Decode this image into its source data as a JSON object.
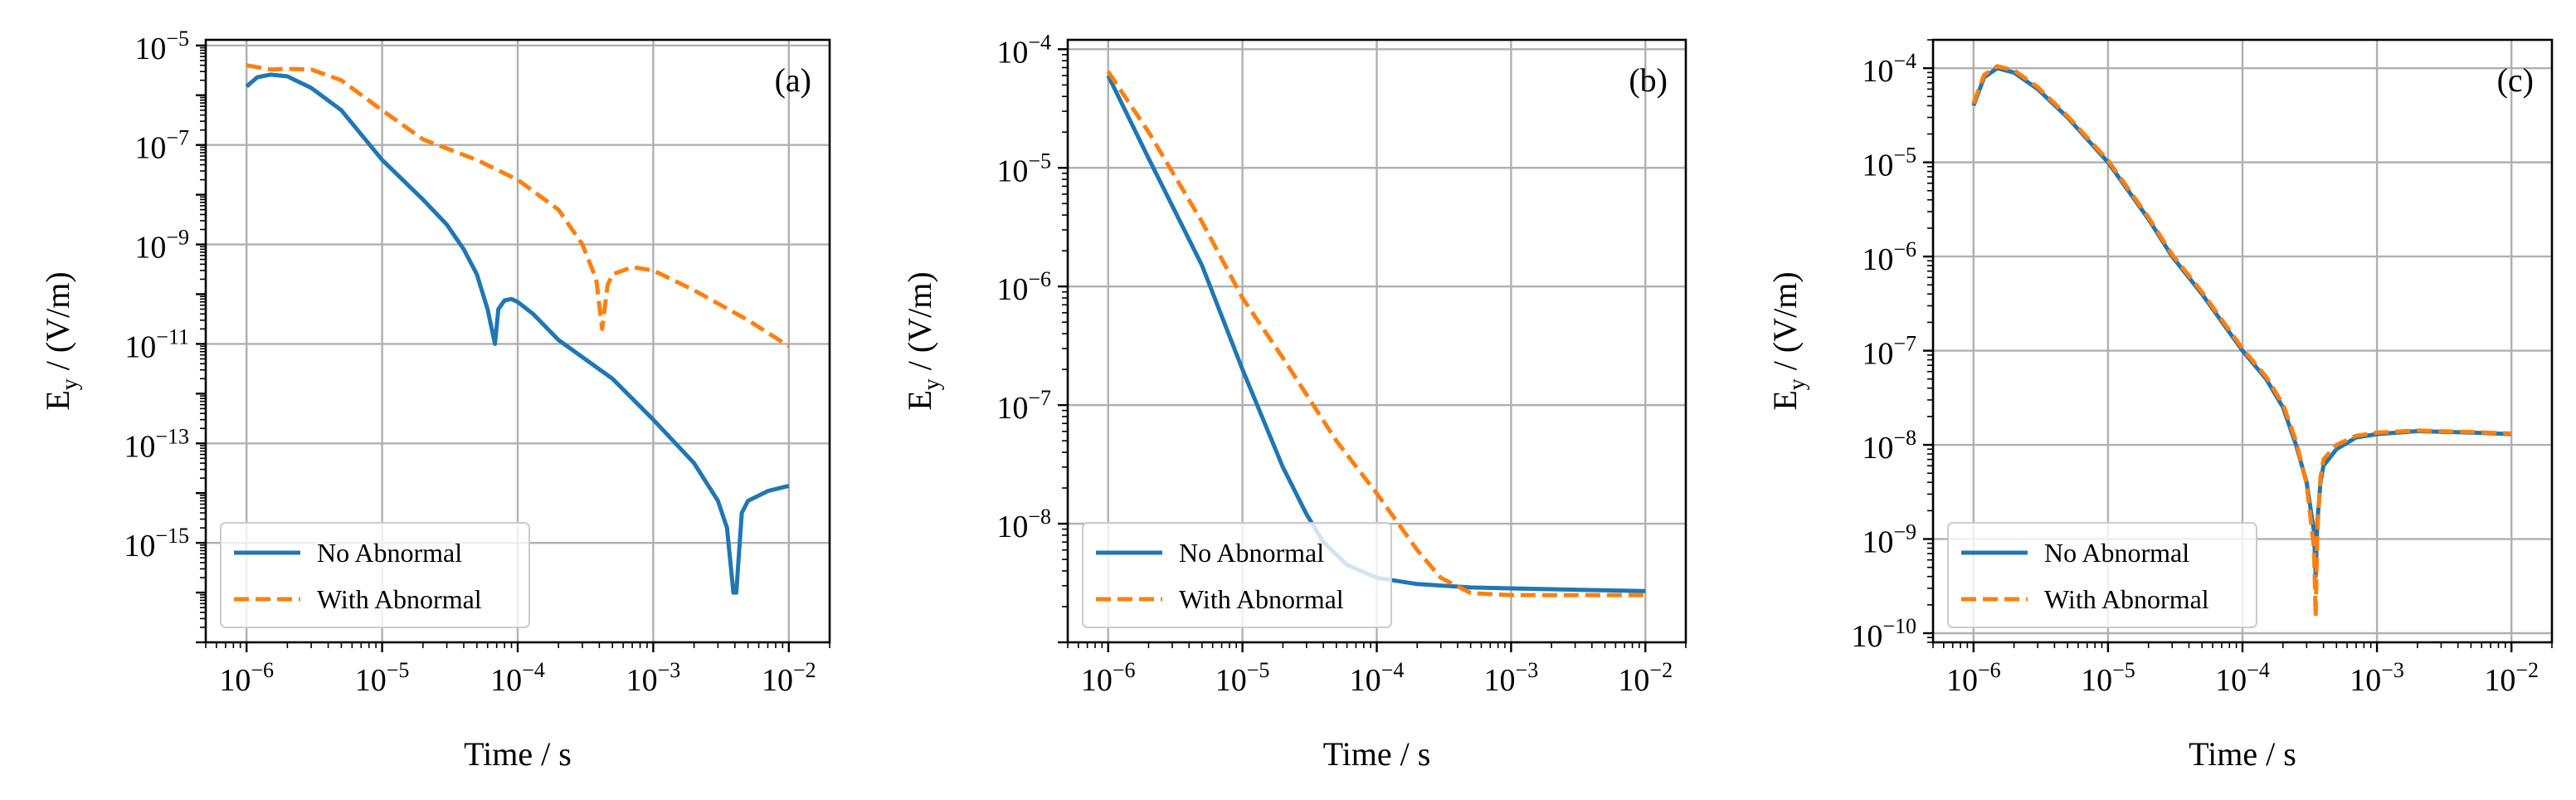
{
  "colors": {
    "no_abnormal": "#1f77b4",
    "with_abnormal": "#ff7f0e",
    "grid": "#b0b0b0"
  },
  "chart_data": [
    {
      "type": "line",
      "panel": "(a)",
      "xlabel": "Time / s",
      "ylabel_main": "E",
      "ylabel_sub": "y",
      "ylabel_rest": " / (V/m)",
      "xscale": "log",
      "yscale": "log",
      "xlim": [
        5e-07,
        0.02
      ],
      "ylim": [
        1e-17,
        1.3e-05
      ],
      "xticks_exp": [
        -6,
        -5,
        -4,
        -3,
        -2
      ],
      "yticks_exp": [
        -15,
        -13,
        -11,
        -9,
        -7,
        -5
      ],
      "grid": true,
      "legend_position": "lower-left",
      "legend": [
        "No Abnormal",
        "With Abnormal"
      ],
      "series": [
        {
          "name": "No Abnormal",
          "style": "solid",
          "color": "#1f77b4",
          "points": [
            [
              1e-06,
              1.5e-06
            ],
            [
              1.2e-06,
              2.3e-06
            ],
            [
              1.5e-06,
              2.6e-06
            ],
            [
              2e-06,
              2.4e-06
            ],
            [
              3e-06,
              1.4e-06
            ],
            [
              5e-06,
              5e-07
            ],
            [
              1e-05,
              5e-08
            ],
            [
              2e-05,
              8e-09
            ],
            [
              3e-05,
              2.5e-09
            ],
            [
              4e-05,
              8e-10
            ],
            [
              5e-05,
              2.5e-10
            ],
            [
              6e-05,
              5e-11
            ],
            [
              6.8e-05,
              1e-11
            ],
            [
              7.2e-05,
              5e-11
            ],
            [
              8e-05,
              7.5e-11
            ],
            [
              9e-05,
              8e-11
            ],
            [
              0.0001,
              7e-11
            ],
            [
              0.00013,
              4e-11
            ],
            [
              0.0002,
              1.2e-11
            ],
            [
              0.0005,
              2e-12
            ],
            [
              0.001,
              3e-13
            ],
            [
              0.002,
              4e-14
            ],
            [
              0.003,
              7e-15
            ],
            [
              0.0035,
              2e-15
            ],
            [
              0.0039,
              1e-16
            ],
            [
              0.0041,
              1e-16
            ],
            [
              0.0045,
              4e-15
            ],
            [
              0.005,
              7e-15
            ],
            [
              0.007,
              1.1e-14
            ],
            [
              0.01,
              1.4e-14
            ]
          ]
        },
        {
          "name": "With Abnormal",
          "style": "dashed",
          "color": "#ff7f0e",
          "points": [
            [
              1e-06,
              4e-06
            ],
            [
              1.5e-06,
              3.3e-06
            ],
            [
              2e-06,
              3.4e-06
            ],
            [
              3e-06,
              3.3e-06
            ],
            [
              5e-06,
              2e-06
            ],
            [
              1e-05,
              5e-07
            ],
            [
              2e-05,
              1.3e-07
            ],
            [
              5e-05,
              5e-08
            ],
            [
              0.0001,
              2e-08
            ],
            [
              0.0002,
              5e-09
            ],
            [
              0.0003,
              1e-09
            ],
            [
              0.00038,
              2e-10
            ],
            [
              0.00042,
              2e-11
            ],
            [
              0.00046,
              1.5e-10
            ],
            [
              0.0005,
              2.5e-10
            ],
            [
              0.0007,
              3.5e-10
            ],
            [
              0.001,
              3e-10
            ],
            [
              0.002,
              1.2e-10
            ],
            [
              0.005,
              3e-11
            ],
            [
              0.01,
              9e-12
            ]
          ]
        }
      ]
    },
    {
      "type": "line",
      "panel": "(b)",
      "xlabel": "Time / s",
      "ylabel_main": "E",
      "ylabel_sub": "y",
      "ylabel_rest": " / (V/m)",
      "xscale": "log",
      "yscale": "log",
      "xlim": [
        5e-07,
        0.02
      ],
      "ylim": [
        1e-09,
        0.00012
      ],
      "xticks_exp": [
        -6,
        -5,
        -4,
        -3,
        -2
      ],
      "yticks_exp": [
        -8,
        -7,
        -6,
        -5,
        -4
      ],
      "grid": true,
      "legend_position": "lower-left",
      "legend": [
        "No Abnormal",
        "With Abnormal"
      ],
      "series": [
        {
          "name": "No Abnormal",
          "style": "solid",
          "color": "#1f77b4",
          "points": [
            [
              1e-06,
              6e-05
            ],
            [
              2e-06,
              1.2e-05
            ],
            [
              5e-06,
              1.5e-06
            ],
            [
              1e-05,
              2e-07
            ],
            [
              2e-05,
              3e-08
            ],
            [
              3e-05,
              1.2e-08
            ],
            [
              4e-05,
              7e-09
            ],
            [
              6e-05,
              4.5e-09
            ],
            [
              0.0001,
              3.5e-09
            ],
            [
              0.0002,
              3.1e-09
            ],
            [
              0.0005,
              2.9e-09
            ],
            [
              0.001,
              2.85e-09
            ],
            [
              0.01,
              2.7e-09
            ]
          ]
        },
        {
          "name": "With Abnormal",
          "style": "dashed",
          "color": "#ff7f0e",
          "points": [
            [
              1e-06,
              6.5e-05
            ],
            [
              2e-06,
              2e-05
            ],
            [
              5e-06,
              3.5e-06
            ],
            [
              1e-05,
              8e-07
            ],
            [
              2e-05,
              2.5e-07
            ],
            [
              5e-05,
              5e-08
            ],
            [
              0.0001,
              1.8e-08
            ],
            [
              0.0002,
              6e-09
            ],
            [
              0.0003,
              3.5e-09
            ],
            [
              0.0005,
              2.6e-09
            ],
            [
              0.001,
              2.5e-09
            ],
            [
              0.01,
              2.5e-09
            ]
          ]
        }
      ]
    },
    {
      "type": "line",
      "panel": "(c)",
      "xlabel": "Time / s",
      "ylabel_main": "E",
      "ylabel_sub": "y",
      "ylabel_rest": " / (V/m)",
      "xscale": "log",
      "yscale": "log",
      "xlim": [
        5e-07,
        0.02
      ],
      "ylim": [
        8e-11,
        0.0002
      ],
      "xticks_exp": [
        -6,
        -5,
        -4,
        -3,
        -2
      ],
      "yticks_exp": [
        -10,
        -9,
        -8,
        -7,
        -6,
        -5,
        -4
      ],
      "grid": true,
      "legend_position": "lower-left",
      "legend": [
        "No Abnormal",
        "With Abnormal"
      ],
      "series": [
        {
          "name": "No Abnormal",
          "style": "solid",
          "color": "#1f77b4",
          "points": [
            [
              1e-06,
              4e-05
            ],
            [
              1.2e-06,
              8e-05
            ],
            [
              1.5e-06,
              0.0001
            ],
            [
              2e-06,
              9e-05
            ],
            [
              3e-06,
              6e-05
            ],
            [
              5e-06,
              3e-05
            ],
            [
              1e-05,
              1e-05
            ],
            [
              2e-05,
              2.5e-06
            ],
            [
              3e-05,
              1e-06
            ],
            [
              5e-05,
              4e-07
            ],
            [
              0.0001,
              1e-07
            ],
            [
              0.00015,
              5e-08
            ],
            [
              0.0002,
              2.5e-08
            ],
            [
              0.00025,
              1e-08
            ],
            [
              0.0003,
              4e-09
            ],
            [
              0.00034,
              1.2e-09
            ],
            [
              0.00035,
              4e-10
            ],
            [
              0.00036,
              1.5e-09
            ],
            [
              0.00038,
              4e-09
            ],
            [
              0.0004,
              6e-09
            ],
            [
              0.0005,
              9e-09
            ],
            [
              0.0007,
              1.2e-08
            ],
            [
              0.001,
              1.3e-08
            ],
            [
              0.002,
              1.4e-08
            ],
            [
              0.005,
              1.35e-08
            ],
            [
              0.01,
              1.3e-08
            ]
          ]
        },
        {
          "name": "With Abnormal",
          "style": "dashed",
          "color": "#ff7f0e",
          "points": [
            [
              1e-06,
              4.2e-05
            ],
            [
              1.2e-06,
              8.5e-05
            ],
            [
              1.5e-06,
              0.000105
            ],
            [
              2e-06,
              9.5e-05
            ],
            [
              3e-06,
              6.3e-05
            ],
            [
              5e-06,
              3.1e-05
            ],
            [
              1e-05,
              1.05e-05
            ],
            [
              2e-05,
              2.6e-06
            ],
            [
              3e-05,
              1.05e-06
            ],
            [
              5e-05,
              4.2e-07
            ],
            [
              0.0001,
              1.05e-07
            ],
            [
              0.00015,
              5.3e-08
            ],
            [
              0.0002,
              2.7e-08
            ],
            [
              0.00025,
              1.1e-08
            ],
            [
              0.0003,
              3.8e-09
            ],
            [
              0.00034,
              8e-10
            ],
            [
              0.00035,
              1.5e-10
            ],
            [
              0.00036,
              1.2e-09
            ],
            [
              0.00038,
              4.5e-09
            ],
            [
              0.0004,
              7e-09
            ],
            [
              0.0005,
              1e-08
            ],
            [
              0.0007,
              1.25e-08
            ],
            [
              0.001,
              1.35e-08
            ],
            [
              0.002,
              1.42e-08
            ],
            [
              0.005,
              1.37e-08
            ],
            [
              0.01,
              1.32e-08
            ]
          ]
        }
      ]
    }
  ]
}
